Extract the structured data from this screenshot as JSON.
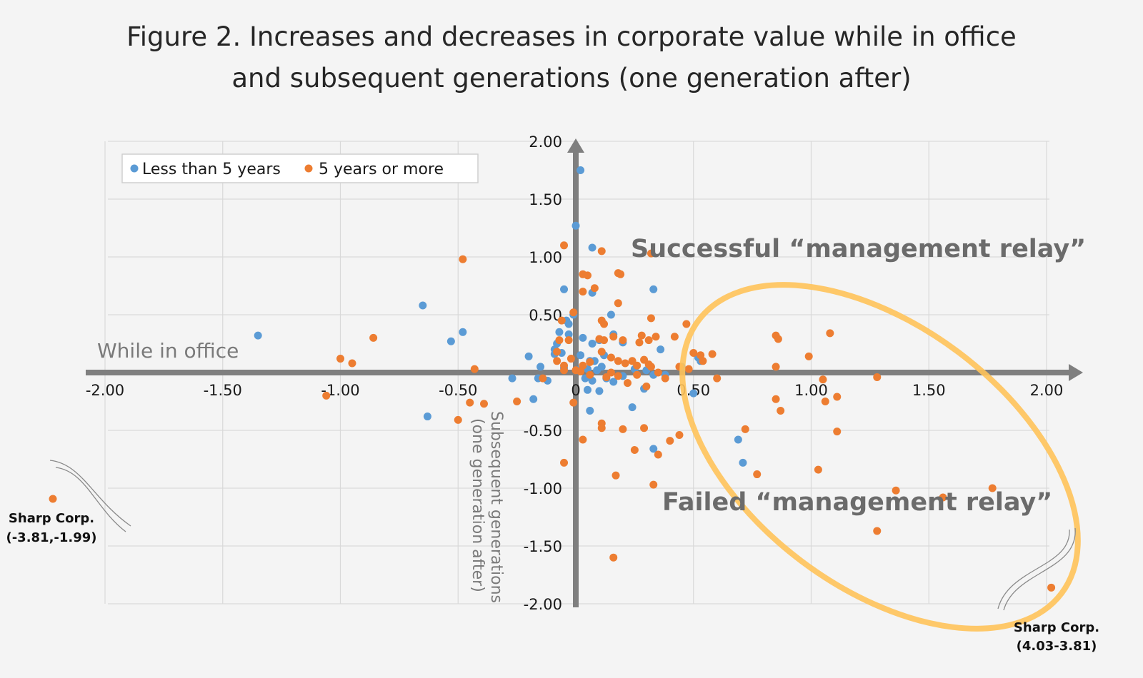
{
  "title_line1": "Figure 2. Increases and decreases in corporate value while in office",
  "title_line2": "and subsequent generations (one generation after)",
  "chart_data": {
    "type": "scatter",
    "title": "Figure 2. Increases and decreases in corporate value while in office and subsequent generations (one generation after)",
    "xlabel": "While in office",
    "ylabel": "Subsequent generations (one generation after)",
    "xlim": [
      -2.0,
      2.0
    ],
    "ylim": [
      -2.0,
      2.0
    ],
    "x_ticks": [
      "-2.00",
      "-1.50",
      "-1.00",
      "-0.50",
      "0",
      "0.50",
      "1.00",
      "1.50",
      "2.00"
    ],
    "y_ticks": [
      "2.00",
      "1.50",
      "1.00",
      "0.50",
      "-0.50",
      "-1.00",
      "-1.50",
      "-2.00"
    ],
    "grid": true,
    "legend_position": "top-left",
    "colors": {
      "less_than_5": "#5b9bd5",
      "five_or_more": "#ed7d31",
      "axis": "#7f7f7f",
      "grid": "#d9d9d9",
      "ellipse": "#ffc35a"
    },
    "series": [
      {
        "name": "Less than 5 years",
        "points": [
          [
            0.02,
            1.75
          ],
          [
            0.0,
            1.27
          ],
          [
            0.07,
            1.08
          ],
          [
            -0.05,
            0.72
          ],
          [
            0.07,
            0.69
          ],
          [
            0.33,
            0.72
          ],
          [
            -0.65,
            0.58
          ],
          [
            -0.48,
            0.35
          ],
          [
            -0.53,
            0.27
          ],
          [
            -1.35,
            0.32
          ],
          [
            -0.27,
            -0.05
          ],
          [
            -0.2,
            0.14
          ],
          [
            -0.15,
            0.05
          ],
          [
            -0.16,
            -0.05
          ],
          [
            -0.09,
            0.2
          ],
          [
            -0.08,
            0.25
          ],
          [
            -0.07,
            0.35
          ],
          [
            -0.04,
            0.45
          ],
          [
            -0.03,
            0.42
          ],
          [
            -0.01,
            0.5
          ],
          [
            -0.03,
            0.33
          ],
          [
            0.03,
            0.3
          ],
          [
            0.07,
            0.25
          ],
          [
            0.1,
            0.28
          ],
          [
            0.15,
            0.5
          ],
          [
            0.16,
            0.33
          ],
          [
            0.2,
            0.26
          ],
          [
            0.12,
            0.15
          ],
          [
            0.02,
            0.15
          ],
          [
            0.06,
            0.1
          ],
          [
            -0.05,
            0.04
          ],
          [
            -0.09,
            0.16
          ],
          [
            -0.06,
            0.17
          ],
          [
            -0.12,
            -0.07
          ],
          [
            0.01,
            0.02
          ],
          [
            0.05,
            0.03
          ],
          [
            0.08,
            0.1
          ],
          [
            0.09,
            0.02
          ],
          [
            0.04,
            -0.05
          ],
          [
            0.07,
            -0.07
          ],
          [
            0.11,
            0.05
          ],
          [
            0.13,
            -0.05
          ],
          [
            0.16,
            -0.08
          ],
          [
            0.2,
            -0.03
          ],
          [
            0.25,
            0.03
          ],
          [
            0.29,
            -0.14
          ],
          [
            0.33,
            -0.02
          ],
          [
            0.36,
            0.2
          ],
          [
            0.38,
            -0.02
          ],
          [
            0.45,
            0.05
          ],
          [
            0.52,
            0.13
          ],
          [
            0.53,
            0.1
          ],
          [
            0.05,
            -0.15
          ],
          [
            0.1,
            -0.16
          ],
          [
            0.24,
            -0.3
          ],
          [
            0.06,
            -0.33
          ],
          [
            -0.18,
            -0.23
          ],
          [
            -0.63,
            -0.38
          ],
          [
            0.33,
            -0.66
          ],
          [
            0.69,
            -0.58
          ],
          [
            0.71,
            -0.78
          ],
          [
            0.3,
            0.02
          ],
          [
            0.5,
            -0.18
          ]
        ]
      },
      {
        "name": "5 years or more",
        "points": [
          [
            -0.48,
            0.98
          ],
          [
            -0.05,
            1.1
          ],
          [
            0.11,
            1.05
          ],
          [
            0.18,
            0.86
          ],
          [
            0.19,
            0.85
          ],
          [
            0.03,
            0.85
          ],
          [
            0.05,
            0.84
          ],
          [
            0.08,
            0.73
          ],
          [
            0.03,
            0.7
          ],
          [
            0.18,
            0.6
          ],
          [
            0.32,
            1.03
          ],
          [
            -0.06,
            0.45
          ],
          [
            -0.01,
            0.52
          ],
          [
            0.11,
            0.45
          ],
          [
            0.12,
            0.42
          ],
          [
            0.32,
            0.47
          ],
          [
            0.47,
            0.42
          ],
          [
            -0.07,
            0.28
          ],
          [
            -0.03,
            0.28
          ],
          [
            0.1,
            0.29
          ],
          [
            0.12,
            0.28
          ],
          [
            0.16,
            0.31
          ],
          [
            0.2,
            0.28
          ],
          [
            0.27,
            0.26
          ],
          [
            0.28,
            0.32
          ],
          [
            0.31,
            0.28
          ],
          [
            0.34,
            0.31
          ],
          [
            0.42,
            0.31
          ],
          [
            -0.86,
            0.3
          ],
          [
            -1.0,
            0.12
          ],
          [
            -0.95,
            0.08
          ],
          [
            -0.43,
            0.03
          ],
          [
            -0.08,
            0.18
          ],
          [
            -0.02,
            0.12
          ],
          [
            -0.05,
            0.06
          ],
          [
            0.0,
            0.02
          ],
          [
            0.03,
            0.06
          ],
          [
            0.06,
            0.09
          ],
          [
            0.11,
            0.18
          ],
          [
            0.15,
            0.13
          ],
          [
            0.18,
            0.1
          ],
          [
            0.21,
            0.08
          ],
          [
            0.24,
            0.1
          ],
          [
            0.26,
            0.06
          ],
          [
            0.29,
            0.11
          ],
          [
            0.31,
            0.07
          ],
          [
            0.35,
            0.0
          ],
          [
            0.38,
            -0.05
          ],
          [
            0.44,
            0.05
          ],
          [
            0.48,
            0.03
          ],
          [
            0.5,
            0.17
          ],
          [
            0.53,
            0.15
          ],
          [
            0.54,
            0.1
          ],
          [
            0.58,
            0.16
          ],
          [
            0.6,
            -0.05
          ],
          [
            -0.14,
            -0.05
          ],
          [
            -0.08,
            0.1
          ],
          [
            -0.05,
            0.02
          ],
          [
            0.02,
            0.01
          ],
          [
            0.06,
            -0.02
          ],
          [
            0.13,
            -0.04
          ],
          [
            0.15,
            0.0
          ],
          [
            0.18,
            -0.03
          ],
          [
            0.22,
            -0.09
          ],
          [
            0.26,
            -0.02
          ],
          [
            0.3,
            -0.12
          ],
          [
            0.32,
            0.05
          ],
          [
            -1.06,
            -0.2
          ],
          [
            -0.45,
            -0.26
          ],
          [
            -0.39,
            -0.27
          ],
          [
            -0.25,
            -0.25
          ],
          [
            -0.01,
            -0.26
          ],
          [
            -0.5,
            -0.41
          ],
          [
            -0.05,
            -0.78
          ],
          [
            0.03,
            -0.58
          ],
          [
            0.11,
            -0.44
          ],
          [
            0.11,
            -0.48
          ],
          [
            0.2,
            -0.49
          ],
          [
            0.25,
            -0.67
          ],
          [
            0.29,
            -0.48
          ],
          [
            0.35,
            -0.71
          ],
          [
            0.4,
            -0.59
          ],
          [
            0.44,
            -0.54
          ],
          [
            0.17,
            -0.89
          ],
          [
            0.33,
            -0.97
          ],
          [
            0.16,
            -1.6
          ],
          [
            0.72,
            -0.49
          ],
          [
            0.77,
            -0.88
          ],
          [
            0.85,
            0.32
          ],
          [
            0.86,
            0.29
          ],
          [
            0.85,
            0.05
          ],
          [
            0.85,
            -0.23
          ],
          [
            0.87,
            -0.33
          ],
          [
            0.99,
            0.14
          ],
          [
            1.05,
            -0.06
          ],
          [
            1.08,
            0.34
          ],
          [
            1.06,
            -0.25
          ],
          [
            1.11,
            -0.21
          ],
          [
            1.11,
            -0.51
          ],
          [
            1.03,
            -0.84
          ],
          [
            1.28,
            -0.04
          ],
          [
            1.36,
            -1.02
          ],
          [
            1.28,
            -1.37
          ],
          [
            1.56,
            -1.08
          ],
          [
            1.77,
            -1.0
          ],
          [
            2.02,
            -1.86
          ]
        ]
      }
    ],
    "annotations": [
      "Successful “management relay”",
      "Failed “management relay”",
      "Sharp Corp. (-3.81,-1.99)",
      "Sharp Corp. (4.03-3.81)"
    ]
  },
  "legend": {
    "less": "Less than 5 years",
    "more": "5 years or more"
  },
  "labels": {
    "x_axis": "While in office",
    "y_axis_line1": "Subsequent generations",
    "y_axis_line2": "(one generation after)",
    "successful": "Successful “management relay”",
    "failed": "Failed “management relay”",
    "sharp_left_name": "Sharp Corp.",
    "sharp_left_value": "(-3.81,-1.99)",
    "sharp_right_name": "Sharp Corp.",
    "sharp_right_value": "(4.03-3.81)"
  }
}
